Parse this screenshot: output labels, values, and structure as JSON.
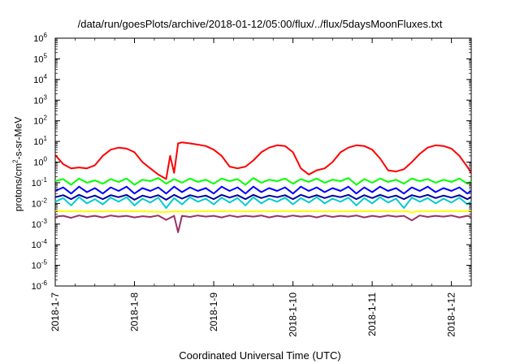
{
  "chart_data": {
    "type": "line",
    "title": "/data/run/goesPlots/archive/2018-01-12/05:00/flux/../flux/5daysMoonFluxes.txt",
    "xlabel": "Coordinated Universal Time (UTC)",
    "ylabel_prefix": "protons/cm",
    "ylabel_sup": "2",
    "ylabel_suffix": "-s-sr-MeV",
    "y_scale": "log",
    "ylim_exponents": [
      -6,
      6
    ],
    "y_tick_base": "10",
    "y_tick_exponents": [
      "-6",
      "-5",
      "-4",
      "-3",
      "-2",
      "-1",
      "0",
      "1",
      "2",
      "3",
      "4",
      "5",
      "6"
    ],
    "x_start": "2018-01-07T00:00",
    "x_end": "2018-01-12T06:00",
    "xlim_days": [
      0,
      5.25
    ],
    "x_tick_labels": [
      "2018-1-7",
      "2018-1-8",
      "2018-1-9",
      "2018-1-10",
      "2018-1-11",
      "2018-1-12"
    ],
    "grid": false,
    "legend": "none",
    "series": [
      {
        "color": "#ff0000",
        "x": [
          0,
          0.1,
          0.2,
          0.3,
          0.4,
          0.5,
          0.6,
          0.7,
          0.8,
          0.9,
          1,
          1.1,
          1.2,
          1.3,
          1.4,
          1.45,
          1.5,
          1.55,
          1.6,
          1.7,
          1.8,
          1.9,
          2,
          2.1,
          2.2,
          2.3,
          2.4,
          2.5,
          2.6,
          2.7,
          2.8,
          2.9,
          3,
          3.1,
          3.2,
          3.3,
          3.4,
          3.5,
          3.6,
          3.7,
          3.8,
          3.9,
          4,
          4.1,
          4.2,
          4.3,
          4.4,
          4.5,
          4.6,
          4.7,
          4.8,
          4.9,
          5,
          5.1,
          5.2,
          5.25
        ],
        "y": [
          2.2,
          0.8,
          0.5,
          0.55,
          0.5,
          0.7,
          2,
          4,
          5,
          4.5,
          3,
          1,
          0.5,
          0.25,
          0.15,
          2,
          0.3,
          8,
          9,
          8,
          7,
          6,
          4,
          2,
          0.6,
          0.5,
          0.6,
          1.2,
          3,
          5,
          6.5,
          6,
          3,
          0.5,
          0.25,
          0.4,
          0.5,
          1,
          3,
          5,
          6.5,
          6,
          4,
          1.5,
          0.4,
          0.35,
          0.45,
          1,
          2.5,
          5,
          6.5,
          6,
          4.5,
          2,
          0.6,
          0.3
        ]
      },
      {
        "color": "#00ff00",
        "x": [
          0,
          0.1,
          0.2,
          0.3,
          0.4,
          0.5,
          0.6,
          0.7,
          0.8,
          0.9,
          1,
          1.1,
          1.2,
          1.3,
          1.4,
          1.5,
          1.6,
          1.7,
          1.8,
          1.9,
          2,
          2.1,
          2.2,
          2.3,
          2.4,
          2.5,
          2.6,
          2.7,
          2.8,
          2.9,
          3,
          3.1,
          3.2,
          3.3,
          3.4,
          3.5,
          3.6,
          3.7,
          3.8,
          3.9,
          4,
          4.1,
          4.2,
          4.3,
          4.4,
          4.5,
          4.6,
          4.7,
          4.8,
          4.9,
          5,
          5.1,
          5.2,
          5.25
        ],
        "y": [
          0.12,
          0.15,
          0.08,
          0.16,
          0.1,
          0.13,
          0.09,
          0.15,
          0.11,
          0.16,
          0.08,
          0.14,
          0.12,
          0.17,
          0.09,
          0.15,
          0.1,
          0.16,
          0.11,
          0.14,
          0.09,
          0.16,
          0.12,
          0.15,
          0.08,
          0.17,
          0.1,
          0.14,
          0.12,
          0.16,
          0.09,
          0.15,
          0.11,
          0.16,
          0.1,
          0.14,
          0.12,
          0.17,
          0.08,
          0.15,
          0.1,
          0.16,
          0.11,
          0.14,
          0.09,
          0.16,
          0.12,
          0.15,
          0.1,
          0.14,
          0.11,
          0.16,
          0.09,
          0.12
        ]
      },
      {
        "color": "#00cccc",
        "x": [
          0,
          0.1,
          0.2,
          0.3,
          0.4,
          0.5,
          0.6,
          0.7,
          0.8,
          0.9,
          1,
          1.1,
          1.2,
          1.3,
          1.4,
          1.5,
          1.6,
          1.7,
          1.8,
          1.9,
          2,
          2.1,
          2.2,
          2.3,
          2.4,
          2.5,
          2.6,
          2.7,
          2.8,
          2.9,
          3,
          3.1,
          3.2,
          3.3,
          3.4,
          3.5,
          3.6,
          3.7,
          3.8,
          3.9,
          4,
          4.1,
          4.2,
          4.3,
          4.4,
          4.5,
          4.6,
          4.7,
          4.8,
          4.9,
          5,
          5.1,
          5.2,
          5.25
        ],
        "y": [
          0.012,
          0.018,
          0.008,
          0.02,
          0.01,
          0.016,
          0.009,
          0.019,
          0.012,
          0.02,
          0.008,
          0.017,
          0.011,
          0.019,
          0.006,
          0.018,
          0.009,
          0.02,
          0.012,
          0.017,
          0.009,
          0.019,
          0.011,
          0.018,
          0.008,
          0.02,
          0.01,
          0.017,
          0.012,
          0.019,
          0.009,
          0.018,
          0.011,
          0.02,
          0.01,
          0.017,
          0.012,
          0.019,
          0.008,
          0.018,
          0.01,
          0.02,
          0.011,
          0.017,
          0.006,
          0.019,
          0.012,
          0.018,
          0.01,
          0.017,
          0.011,
          0.019,
          0.009,
          0.012
        ]
      },
      {
        "color": "#0000ff",
        "x": [
          0,
          0.1,
          0.2,
          0.3,
          0.4,
          0.5,
          0.6,
          0.7,
          0.8,
          0.9,
          1,
          1.1,
          1.2,
          1.3,
          1.4,
          1.5,
          1.6,
          1.7,
          1.8,
          1.9,
          2,
          2.1,
          2.2,
          2.3,
          2.4,
          2.5,
          2.6,
          2.7,
          2.8,
          2.9,
          3,
          3.1,
          3.2,
          3.3,
          3.4,
          3.5,
          3.6,
          3.7,
          3.8,
          3.9,
          4,
          4.1,
          4.2,
          4.3,
          4.4,
          4.5,
          4.6,
          4.7,
          4.8,
          4.9,
          5,
          5.1,
          5.2,
          5.25
        ],
        "y": [
          0.04,
          0.06,
          0.03,
          0.065,
          0.035,
          0.055,
          0.03,
          0.06,
          0.04,
          0.065,
          0.03,
          0.055,
          0.04,
          0.06,
          0.03,
          0.065,
          0.035,
          0.06,
          0.04,
          0.055,
          0.03,
          0.065,
          0.04,
          0.06,
          0.03,
          0.065,
          0.035,
          0.055,
          0.04,
          0.06,
          0.03,
          0.065,
          0.04,
          0.06,
          0.035,
          0.055,
          0.04,
          0.065,
          0.03,
          0.06,
          0.035,
          0.065,
          0.04,
          0.055,
          0.03,
          0.06,
          0.04,
          0.065,
          0.035,
          0.055,
          0.04,
          0.06,
          0.03,
          0.04
        ]
      },
      {
        "color": "#0000a0",
        "x": [
          0,
          0.1,
          0.2,
          0.3,
          0.4,
          0.5,
          0.6,
          0.7,
          0.8,
          0.9,
          1,
          1.1,
          1.2,
          1.3,
          1.4,
          1.5,
          1.6,
          1.7,
          1.8,
          1.9,
          2,
          2.1,
          2.2,
          2.3,
          2.4,
          2.5,
          2.6,
          2.7,
          2.8,
          2.9,
          3,
          3.1,
          3.2,
          3.3,
          3.4,
          3.5,
          3.6,
          3.7,
          3.8,
          3.9,
          4,
          4.1,
          4.2,
          4.3,
          4.4,
          4.5,
          4.6,
          4.7,
          4.8,
          4.9,
          5,
          5.1,
          5.2,
          5.25
        ],
        "y": [
          0.02,
          0.025,
          0.016,
          0.026,
          0.018,
          0.024,
          0.016,
          0.025,
          0.02,
          0.026,
          0.015,
          0.024,
          0.019,
          0.025,
          0.015,
          0.026,
          0.017,
          0.025,
          0.02,
          0.024,
          0.016,
          0.026,
          0.019,
          0.025,
          0.016,
          0.026,
          0.018,
          0.024,
          0.02,
          0.025,
          0.016,
          0.026,
          0.019,
          0.025,
          0.018,
          0.024,
          0.02,
          0.026,
          0.016,
          0.025,
          0.018,
          0.026,
          0.019,
          0.024,
          0.016,
          0.025,
          0.02,
          0.026,
          0.018,
          0.024,
          0.019,
          0.025,
          0.016,
          0.02
        ]
      },
      {
        "color": "#ffff00",
        "x": [
          0,
          0.5,
          1,
          1.4,
          1.5,
          1.6,
          2,
          2.5,
          3,
          3.5,
          4,
          4.45,
          4.5,
          4.55,
          5,
          5.25
        ],
        "y": [
          0.0042,
          0.0041,
          0.0042,
          0.0038,
          0.0041,
          0.004,
          0.0042,
          0.0041,
          0.0042,
          0.0041,
          0.0042,
          0.0041,
          0.0035,
          0.0041,
          0.0042,
          0.0042
        ]
      },
      {
        "color": "#993366",
        "x": [
          0,
          0.1,
          0.2,
          0.3,
          0.4,
          0.5,
          0.6,
          0.7,
          0.8,
          0.9,
          1,
          1.1,
          1.2,
          1.3,
          1.4,
          1.5,
          1.55,
          1.6,
          1.7,
          1.8,
          1.9,
          2,
          2.1,
          2.2,
          2.3,
          2.4,
          2.5,
          2.6,
          2.7,
          2.8,
          2.9,
          3,
          3.1,
          3.2,
          3.3,
          3.4,
          3.5,
          3.6,
          3.7,
          3.8,
          3.9,
          4,
          4.1,
          4.2,
          4.3,
          4.4,
          4.5,
          4.6,
          4.7,
          4.8,
          4.9,
          5,
          5.1,
          5.2,
          5.25
        ],
        "y": [
          0.0023,
          0.0025,
          0.002,
          0.0026,
          0.0022,
          0.0025,
          0.0021,
          0.0026,
          0.0023,
          0.0025,
          0.0021,
          0.0024,
          0.0022,
          0.0026,
          0.0016,
          0.0025,
          0.0004,
          0.0025,
          0.0022,
          0.0026,
          0.0023,
          0.0025,
          0.0021,
          0.0026,
          0.0022,
          0.0025,
          0.0023,
          0.0026,
          0.0021,
          0.0025,
          0.0022,
          0.0026,
          0.0023,
          0.0025,
          0.0021,
          0.0026,
          0.0022,
          0.0025,
          0.0023,
          0.0026,
          0.0021,
          0.0025,
          0.0022,
          0.0026,
          0.0023,
          0.0025,
          0.0015,
          0.0026,
          0.0022,
          0.0025,
          0.0023,
          0.0026,
          0.0021,
          0.0025,
          0.0023
        ]
      }
    ]
  }
}
